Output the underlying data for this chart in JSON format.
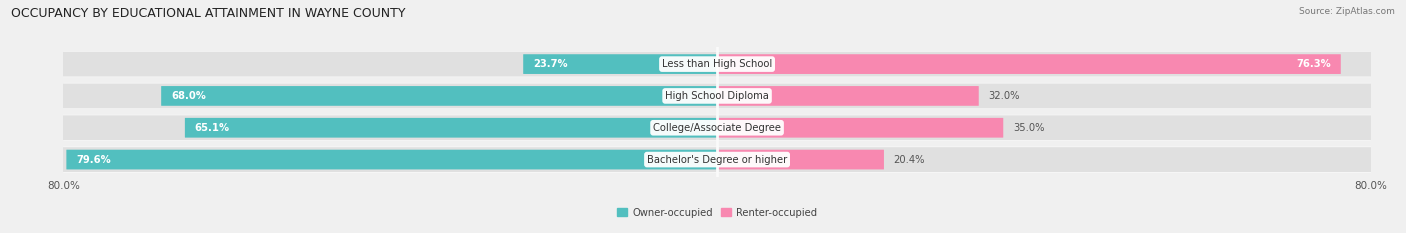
{
  "title": "OCCUPANCY BY EDUCATIONAL ATTAINMENT IN WAYNE COUNTY",
  "source": "Source: ZipAtlas.com",
  "categories": [
    "Less than High School",
    "High School Diploma",
    "College/Associate Degree",
    "Bachelor's Degree or higher"
  ],
  "owner_values": [
    23.7,
    68.0,
    65.1,
    79.6
  ],
  "renter_values": [
    76.3,
    32.0,
    35.0,
    20.4
  ],
  "owner_color": "#52BFBF",
  "renter_color": "#F888B0",
  "bar_height": 0.58,
  "background_color": "#f0f0f0",
  "bar_bg_color": "#e0e0e0",
  "row_bg_color": "#fafafa",
  "title_fontsize": 9,
  "label_fontsize": 7.2,
  "value_fontsize": 7.2,
  "tick_fontsize": 7.5,
  "xlim_left": -80,
  "xlim_right": 80
}
